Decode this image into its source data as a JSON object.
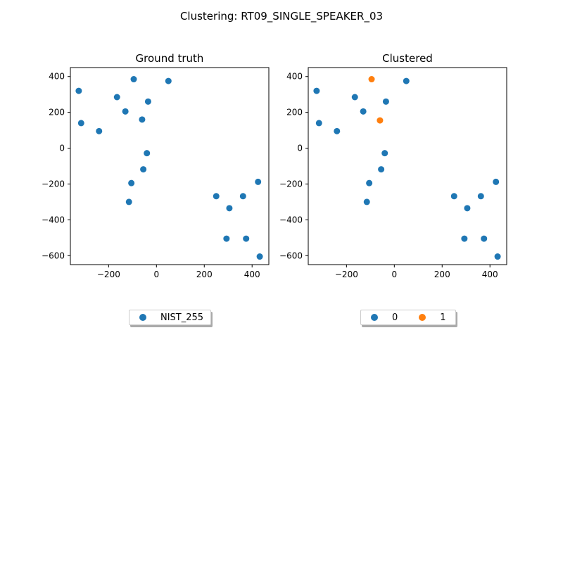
{
  "figure_title": "Clustering: RT09_SINGLE_SPEAKER_03",
  "colors": {
    "series0": "#1f77b4",
    "series1": "#ff7f0e"
  },
  "chart_data": [
    {
      "type": "scatter",
      "title": "Ground truth",
      "xlabel": "",
      "ylabel": "",
      "xlim": [
        -360,
        470
      ],
      "ylim": [
        -650,
        450
      ],
      "xticks": [
        -200,
        0,
        200,
        400
      ],
      "yticks": [
        -600,
        -400,
        -200,
        0,
        200,
        400
      ],
      "xtick_labels": [
        "−200",
        "0",
        "200",
        "400"
      ],
      "ytick_labels": [
        "−600",
        "−400",
        "−200",
        "0",
        "200",
        "400"
      ],
      "grid": false,
      "legend_position": "below-center",
      "series": [
        {
          "name": "NIST_255",
          "color": "#1f77b4",
          "points": [
            [
              -325,
              320
            ],
            [
              -95,
              385
            ],
            [
              50,
              375
            ],
            [
              -165,
              285
            ],
            [
              -35,
              260
            ],
            [
              -130,
              205
            ],
            [
              -60,
              160
            ],
            [
              -315,
              140
            ],
            [
              -240,
              95
            ],
            [
              -40,
              -28
            ],
            [
              -55,
              -118
            ],
            [
              -105,
              -195
            ],
            [
              -115,
              -300
            ],
            [
              250,
              -268
            ],
            [
              362,
              -268
            ],
            [
              305,
              -335
            ],
            [
              425,
              -188
            ],
            [
              293,
              -505
            ],
            [
              375,
              -505
            ],
            [
              432,
              -605
            ]
          ]
        }
      ]
    },
    {
      "type": "scatter",
      "title": "Clustered",
      "xlabel": "",
      "ylabel": "",
      "xlim": [
        -360,
        470
      ],
      "ylim": [
        -650,
        450
      ],
      "xticks": [
        -200,
        0,
        200,
        400
      ],
      "yticks": [
        -600,
        -400,
        -200,
        0,
        200,
        400
      ],
      "xtick_labels": [
        "−200",
        "0",
        "200",
        "400"
      ],
      "ytick_labels": [
        "−600",
        "−400",
        "−200",
        "0",
        "200",
        "400"
      ],
      "grid": false,
      "legend_position": "below-center",
      "series": [
        {
          "name": "0",
          "color": "#1f77b4",
          "points": [
            [
              -325,
              320
            ],
            [
              50,
              375
            ],
            [
              -165,
              285
            ],
            [
              -35,
              260
            ],
            [
              -130,
              205
            ],
            [
              -315,
              140
            ],
            [
              -240,
              95
            ],
            [
              -40,
              -28
            ],
            [
              -55,
              -118
            ],
            [
              -105,
              -195
            ],
            [
              -115,
              -300
            ],
            [
              250,
              -268
            ],
            [
              362,
              -268
            ],
            [
              305,
              -335
            ],
            [
              425,
              -188
            ],
            [
              293,
              -505
            ],
            [
              375,
              -505
            ],
            [
              432,
              -605
            ]
          ]
        },
        {
          "name": "1",
          "color": "#ff7f0e",
          "points": [
            [
              -95,
              385
            ],
            [
              -60,
              155
            ]
          ]
        }
      ]
    }
  ]
}
